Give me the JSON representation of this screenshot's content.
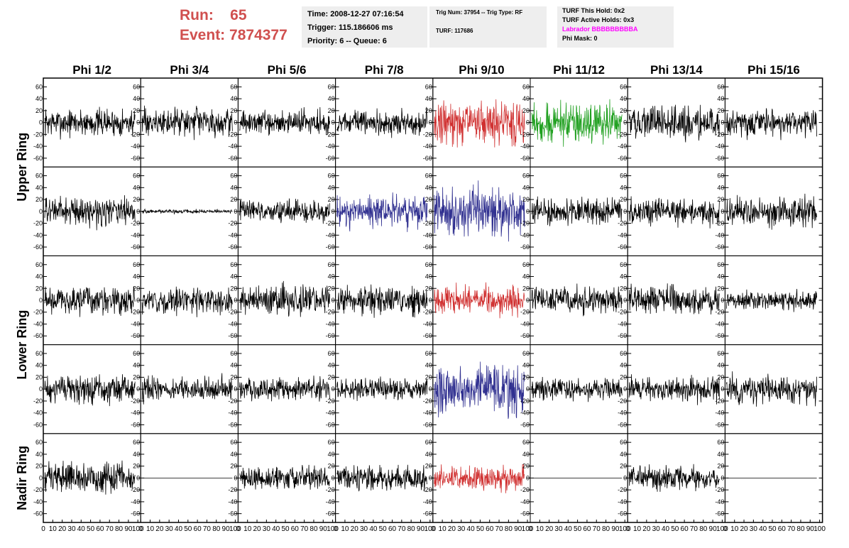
{
  "header": {
    "run_label": "Run:",
    "run_value": "65",
    "event_label": "Event:",
    "event_value": "7874377"
  },
  "info_box_1": {
    "time": "Time: 2008-12-27 07:16:54",
    "trigger": "Trigger: 115.186606 ms",
    "priority": "Priority: 6 -- Queue: 6"
  },
  "info_box_2": {
    "trig": "Trig Num: 37954 -- Trig Type: RF",
    "turf": "TURF: 117686"
  },
  "info_box_3": {
    "this_hold": "TURF This Hold: 0x2",
    "active_holds": "TURF Active Holds: 0x3",
    "labrador": "Labrador BBBBBBBBBA",
    "phi_mask": "Phi Mask: 0"
  },
  "columns": [
    "Phi 1/2",
    "Phi 3/4",
    "Phi 5/6",
    "Phi 7/8",
    "Phi 9/10",
    "Phi 11/12",
    "Phi 13/14",
    "Phi 15/16"
  ],
  "ring_labels": [
    {
      "label": "Upper Ring",
      "spans_rows": [
        0,
        1
      ]
    },
    {
      "label": "Lower Ring",
      "spans_rows": [
        2,
        3
      ]
    },
    {
      "label": "Nadir Ring",
      "spans_rows": [
        4
      ]
    }
  ],
  "colors": {
    "red": "#d03030",
    "green": "#20a020",
    "blue": "#303090",
    "default": "#000000",
    "run_text": "#d0504f",
    "labrador": "#ff00ff"
  },
  "chart_data": {
    "type": "line",
    "description_rows": 5,
    "xlim": [
      0,
      100
    ],
    "ylim": [
      -70,
      70
    ],
    "y_ticks": [
      -60,
      -40,
      -20,
      0,
      20,
      40,
      60
    ],
    "x_tick_labels": [
      "0",
      "10",
      "20",
      "30",
      "40",
      "50",
      "60",
      "70",
      "80",
      "90",
      "100"
    ],
    "panels": [
      [
        {
          "color": "default",
          "amp": 14
        },
        {
          "color": "default",
          "amp": 14
        },
        {
          "color": "default",
          "amp": 12
        },
        {
          "color": "default",
          "amp": 12
        },
        {
          "color": "red",
          "amp": 22
        },
        {
          "color": "green",
          "amp": 20
        },
        {
          "color": "default",
          "amp": 16
        },
        {
          "color": "default",
          "amp": 14
        }
      ],
      [
        {
          "color": "default",
          "amp": 14
        },
        {
          "color": "default",
          "amp": 2
        },
        {
          "color": "default",
          "amp": 11
        },
        {
          "color": "blue",
          "amp": 16
        },
        {
          "color": "blue",
          "amp": 24
        },
        {
          "color": "default",
          "amp": 13
        },
        {
          "color": "default",
          "amp": 13
        },
        {
          "color": "default",
          "amp": 16
        }
      ],
      [
        {
          "color": "default",
          "amp": 14
        },
        {
          "color": "default",
          "amp": 13
        },
        {
          "color": "default",
          "amp": 15
        },
        {
          "color": "default",
          "amp": 14
        },
        {
          "color": "red",
          "amp": 14
        },
        {
          "color": "default",
          "amp": 14
        },
        {
          "color": "default",
          "amp": 14
        },
        {
          "color": "default",
          "amp": 10
        }
      ],
      [
        {
          "color": "default",
          "amp": 14
        },
        {
          "color": "default",
          "amp": 12
        },
        {
          "color": "default",
          "amp": 12
        },
        {
          "color": "default",
          "amp": 11
        },
        {
          "color": "blue",
          "amp": 24
        },
        {
          "color": "default",
          "amp": 11
        },
        {
          "color": "default",
          "amp": 13
        },
        {
          "color": "default",
          "amp": 14
        }
      ],
      [
        {
          "color": "default",
          "amp": 15
        },
        {
          "color": "default",
          "amp": 0
        },
        {
          "color": "default",
          "amp": 12
        },
        {
          "color": "default",
          "amp": 12
        },
        {
          "color": "red",
          "amp": 12
        },
        {
          "color": "default",
          "amp": 0
        },
        {
          "color": "default",
          "amp": 12
        },
        {
          "color": "default",
          "amp": 0
        }
      ]
    ]
  }
}
